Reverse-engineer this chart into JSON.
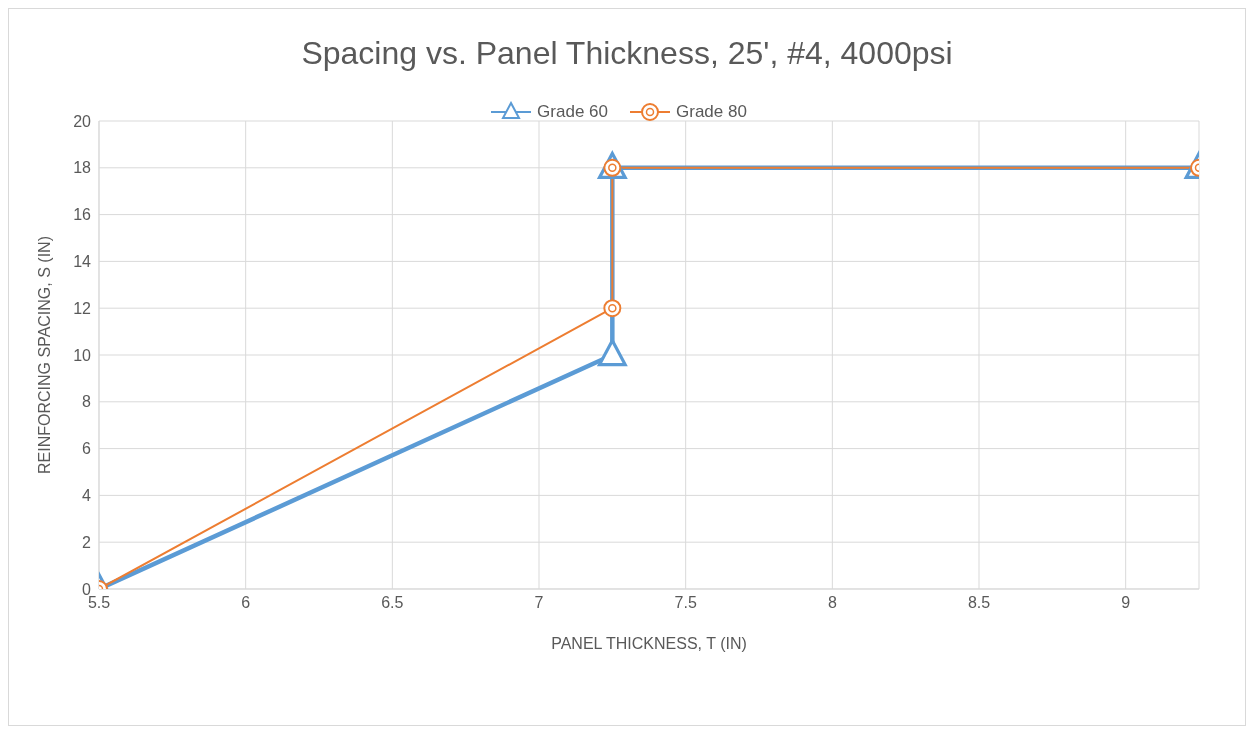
{
  "chart_data": {
    "type": "line",
    "title": "Spacing vs. Panel Thickness, 25', #4, 4000psi",
    "xlabel": "PANEL THICKNESS, T (IN)",
    "ylabel": "REINFORCING SPACING, S (IN)",
    "series": [
      {
        "name": "Grade 60",
        "color": "#5b9bd5",
        "marker": "triangle",
        "x": [
          5.5,
          7.25,
          7.25,
          9.25
        ],
        "values": [
          0,
          10,
          18,
          18
        ]
      },
      {
        "name": "Grade 80",
        "color": "#ed7d31",
        "marker": "circle",
        "x": [
          5.5,
          7.25,
          7.25,
          9.25
        ],
        "values": [
          0,
          12,
          18,
          18
        ]
      }
    ],
    "xlim": [
      5.5,
      9.25
    ],
    "xticks": [
      5.5,
      6,
      6.5,
      7,
      7.5,
      8,
      8.5,
      9
    ],
    "ylim": [
      0,
      20
    ],
    "yticks": [
      0,
      2,
      4,
      6,
      8,
      10,
      12,
      14,
      16,
      18,
      20
    ],
    "grid": true,
    "legend": "top",
    "line_style": "solid"
  }
}
